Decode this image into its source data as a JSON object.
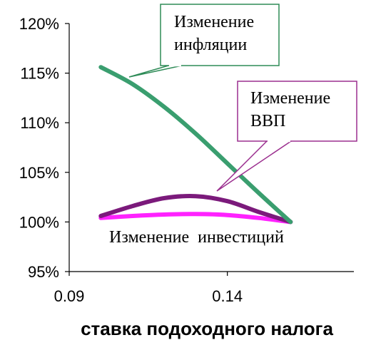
{
  "chart_data": {
    "type": "line",
    "title": "",
    "xlabel": "ставка подоходного налога",
    "ylabel": "",
    "xlim": [
      0.09,
      0.18
    ],
    "ylim": [
      95,
      120
    ],
    "x_ticks": [
      {
        "value": 0.09,
        "label": "0.09"
      },
      {
        "value": 0.14,
        "label": "0.14"
      }
    ],
    "y_ticks": [
      {
        "value": 95,
        "label": "95%"
      },
      {
        "value": 100,
        "label": "100%"
      },
      {
        "value": 105,
        "label": "105%"
      },
      {
        "value": 110,
        "label": "110%"
      },
      {
        "value": 115,
        "label": "115%"
      },
      {
        "value": 120,
        "label": "120%"
      }
    ],
    "grid": false,
    "series": [
      {
        "id": "inflation",
        "name": "Изменение инфляции",
        "label_lines": [
          "Изменение",
          "инфляции"
        ],
        "color": "#3a9e6f",
        "x": [
          0.1,
          0.11,
          0.12,
          0.13,
          0.14,
          0.15,
          0.16
        ],
        "y": [
          115.6,
          113.9,
          111.6,
          108.9,
          105.9,
          102.9,
          100.0
        ]
      },
      {
        "id": "gdp",
        "name": "Изменение ВВП",
        "label_lines": [
          "Изменение",
          "ВВП"
        ],
        "color": "#7b1a7b",
        "x": [
          0.1,
          0.11,
          0.12,
          0.13,
          0.14,
          0.15,
          0.16
        ],
        "y": [
          100.6,
          101.6,
          102.4,
          102.6,
          102.1,
          101.0,
          100.0
        ]
      },
      {
        "id": "investment",
        "name": "Изменение инвестиций",
        "label_lines": [
          "Изменение  инвестиций"
        ],
        "color": "#ff22ff",
        "x": [
          0.1,
          0.11,
          0.12,
          0.13,
          0.14,
          0.15,
          0.16
        ],
        "y": [
          100.4,
          100.6,
          100.75,
          100.8,
          100.7,
          100.4,
          100.0
        ]
      }
    ],
    "colors": {
      "inflation_callout_border": "#2e8b57",
      "gdp_callout_border": "#9b2f8f"
    }
  }
}
